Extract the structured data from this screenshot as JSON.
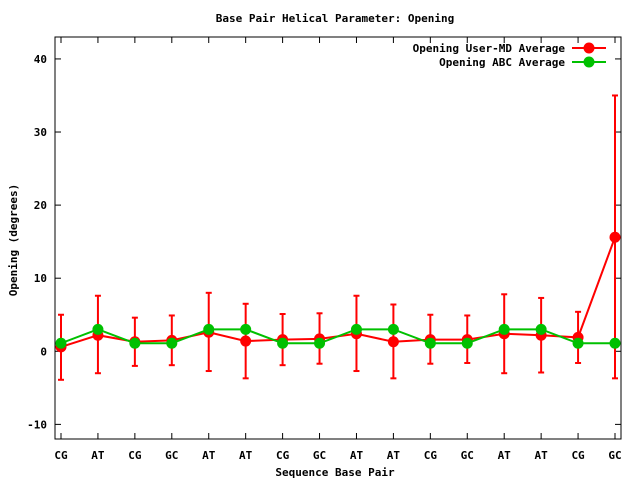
{
  "chart_data": {
    "type": "line",
    "title": "Base Pair Helical Parameter: Opening",
    "xlabel": "Sequence Base Pair",
    "ylabel": "Opening (degrees)",
    "categories": [
      "CG",
      "AT",
      "CG",
      "GC",
      "AT",
      "AT",
      "CG",
      "GC",
      "AT",
      "AT",
      "CG",
      "GC",
      "AT",
      "AT",
      "CG",
      "GC"
    ],
    "ylim": [
      -12,
      43
    ],
    "yticks": [
      -10,
      0,
      10,
      20,
      30,
      40
    ],
    "grid": false,
    "legend_position": "top-right",
    "series": [
      {
        "name": "Opening User-MD Average",
        "color": "#ff0000",
        "values": [
          0.6,
          2.2,
          1.3,
          1.5,
          2.6,
          1.4,
          1.6,
          1.7,
          2.4,
          1.3,
          1.6,
          1.6,
          2.4,
          2.2,
          1.9,
          15.6
        ],
        "error_low": [
          -3.9,
          -3.0,
          -2.0,
          -1.9,
          -2.7,
          -3.7,
          -1.9,
          -1.7,
          -2.7,
          -3.7,
          -1.7,
          -1.6,
          -3.0,
          -2.9,
          -1.6,
          -3.7
        ],
        "error_high": [
          5.0,
          7.6,
          4.6,
          4.9,
          8.0,
          6.5,
          5.1,
          5.2,
          7.6,
          6.4,
          5.0,
          4.9,
          7.8,
          7.3,
          5.4,
          35.0
        ]
      },
      {
        "name": "Opening ABC Average",
        "color": "#00c000",
        "values": [
          1.1,
          3.0,
          1.1,
          1.1,
          3.0,
          3.0,
          1.1,
          1.1,
          3.0,
          3.0,
          1.1,
          1.1,
          3.0,
          3.0,
          1.1,
          1.1
        ]
      }
    ]
  }
}
